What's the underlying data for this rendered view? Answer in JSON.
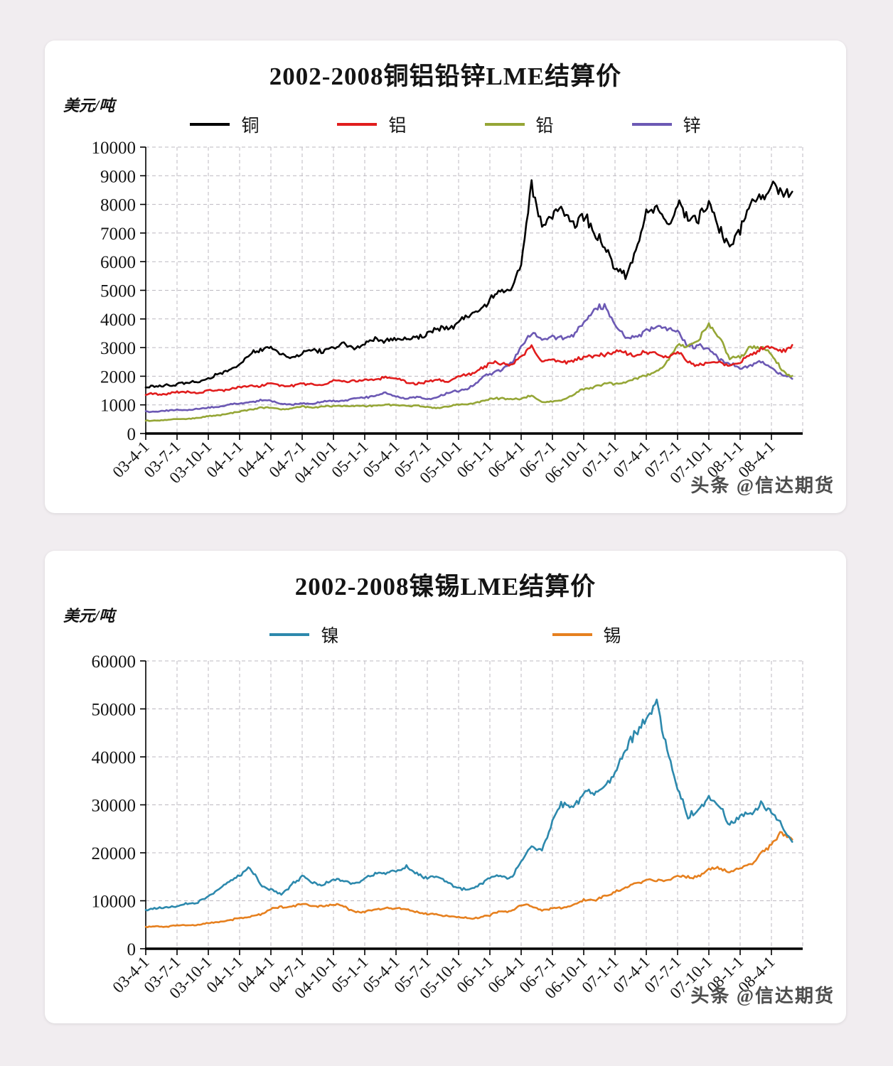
{
  "watermark": "头条 @信达期货",
  "chart_data": [
    {
      "type": "line",
      "title": "2002-2008铜铝铅锌LME结算价",
      "ylabel": "美元/吨",
      "xlabel": "",
      "ylim": [
        0,
        10000
      ],
      "ytick_step": 1000,
      "grid": true,
      "legend_position": "top",
      "x_tick_labels": [
        "03-4-1",
        "03-7-1",
        "03-10-1",
        "04-1-1",
        "04-4-1",
        "04-7-1",
        "04-10-1",
        "05-1-1",
        "05-4-1",
        "05-7-1",
        "05-10-1",
        "06-1-1",
        "06-4-1",
        "06-7-1",
        "06-10-1",
        "07-1-1",
        "07-4-1",
        "07-7-1",
        "07-10-1",
        "08-1-1",
        "08-4-1"
      ],
      "x_note": "monthly values from 2003-04 through 2008-06",
      "series": [
        {
          "name": "铜",
          "color": "#000000",
          "values": [
            1600,
            1640,
            1700,
            1720,
            1760,
            1820,
            1900,
            2050,
            2250,
            2420,
            2750,
            2980,
            3020,
            2720,
            2650,
            2800,
            2850,
            2900,
            3000,
            3090,
            3040,
            3100,
            3250,
            3300,
            3350,
            3210,
            3420,
            3450,
            3650,
            3720,
            3900,
            4060,
            4420,
            4620,
            4900,
            5100,
            6000,
            8500,
            7250,
            7700,
            7600,
            7500,
            7500,
            7000,
            6700,
            5750,
            5450,
            6500,
            7700,
            7750,
            7500,
            7950,
            7480,
            7600,
            8000,
            7050,
            6650,
            7100,
            7900,
            8400,
            8650,
            8300,
            8550
          ]
        },
        {
          "name": "铝",
          "color": "#e11d1d",
          "values": [
            1330,
            1380,
            1400,
            1420,
            1450,
            1420,
            1480,
            1520,
            1550,
            1600,
            1680,
            1670,
            1750,
            1650,
            1700,
            1720,
            1700,
            1750,
            1820,
            1830,
            1850,
            1850,
            1900,
            1980,
            1890,
            1800,
            1750,
            1800,
            1870,
            1840,
            1950,
            2050,
            2250,
            2400,
            2450,
            2450,
            2650,
            3050,
            2520,
            2550,
            2480,
            2550,
            2650,
            2700,
            2800,
            2800,
            2820,
            2760,
            2800,
            2790,
            2700,
            2790,
            2500,
            2400,
            2450,
            2500,
            2400,
            2450,
            2750,
            3000,
            2950,
            2900,
            3080
          ]
        },
        {
          "name": "铅",
          "color": "#95a636",
          "values": [
            440,
            460,
            470,
            500,
            520,
            545,
            600,
            650,
            700,
            750,
            850,
            900,
            880,
            850,
            880,
            930,
            920,
            935,
            950,
            965,
            975,
            950,
            990,
            1000,
            980,
            975,
            980,
            900,
            905,
            950,
            1000,
            1050,
            1100,
            1200,
            1250,
            1200,
            1190,
            1340,
            1100,
            1090,
            1200,
            1350,
            1550,
            1650,
            1750,
            1700,
            1800,
            1920,
            2000,
            2200,
            2500,
            3020,
            3100,
            3250,
            3780,
            3480,
            2600,
            2620,
            3100,
            2980,
            2780,
            2250,
            1950
          ]
        },
        {
          "name": "锌",
          "color": "#6c59b4",
          "values": [
            770,
            780,
            790,
            820,
            830,
            855,
            900,
            950,
            1000,
            1050,
            1100,
            1150,
            1140,
            1050,
            1000,
            1050,
            1060,
            1100,
            1140,
            1150,
            1200,
            1250,
            1350,
            1390,
            1300,
            1250,
            1255,
            1200,
            1300,
            1400,
            1500,
            1600,
            1850,
            2100,
            2250,
            2400,
            3050,
            3550,
            3200,
            3380,
            3380,
            3400,
            3850,
            4450,
            4380,
            3800,
            3400,
            3300,
            3600,
            3800,
            3600,
            3580,
            3100,
            3000,
            2980,
            2600,
            2400,
            2300,
            2400,
            2500,
            2250,
            2100,
            1900
          ]
        }
      ]
    },
    {
      "type": "line",
      "title": "2002-2008镍锡LME结算价",
      "ylabel": "美元/吨",
      "xlabel": "",
      "ylim": [
        0,
        60000
      ],
      "ytick_step": 10000,
      "grid": true,
      "legend_position": "top",
      "x_tick_labels": [
        "03-4-1",
        "03-7-1",
        "03-10-1",
        "04-1-1",
        "04-4-1",
        "04-7-1",
        "04-10-1",
        "05-1-1",
        "05-4-1",
        "05-7-1",
        "05-10-1",
        "06-1-1",
        "06-4-1",
        "06-7-1",
        "06-10-1",
        "07-1-1",
        "07-4-1",
        "07-7-1",
        "07-10-1",
        "08-1-1",
        "08-4-1"
      ],
      "x_note": "monthly values from 2003-04 through 2008-06",
      "series": [
        {
          "name": "镍",
          "color": "#2d89ad",
          "values": [
            8000,
            8400,
            8800,
            8700,
            9300,
            9800,
            11000,
            12100,
            14200,
            15200,
            16600,
            13600,
            12400,
            11200,
            13600,
            15100,
            13500,
            13600,
            14500,
            14100,
            13900,
            14600,
            15400,
            16100,
            16100,
            16800,
            15900,
            14500,
            14800,
            14000,
            12500,
            12100,
            13600,
            14600,
            15000,
            15000,
            18000,
            21000,
            20600,
            26500,
            30000,
            29800,
            32200,
            32000,
            34500,
            36200,
            41200,
            46000,
            48500,
            50800,
            42000,
            33200,
            27200,
            29600,
            31200,
            29500,
            26200,
            27600,
            27600,
            31000,
            28600,
            25400,
            22600
          ]
        },
        {
          "name": "锡",
          "color": "#e6801f",
          "values": [
            4500,
            4680,
            4700,
            4800,
            4900,
            5000,
            5300,
            5550,
            6050,
            6300,
            6600,
            7250,
            8250,
            8700,
            9000,
            9150,
            8900,
            9100,
            9000,
            8900,
            7800,
            7600,
            8200,
            8600,
            8300,
            8200,
            7800,
            7200,
            7100,
            6900,
            6500,
            6300,
            6600,
            6900,
            7800,
            7900,
            9000,
            8900,
            8000,
            8400,
            8600,
            9200,
            10000,
            10100,
            11200,
            11500,
            12800,
            13800,
            14000,
            14200,
            14500,
            15000,
            15000,
            15200,
            16300,
            16700,
            16300,
            16500,
            17500,
            20000,
            21500,
            24200,
            22800
          ]
        }
      ]
    }
  ]
}
